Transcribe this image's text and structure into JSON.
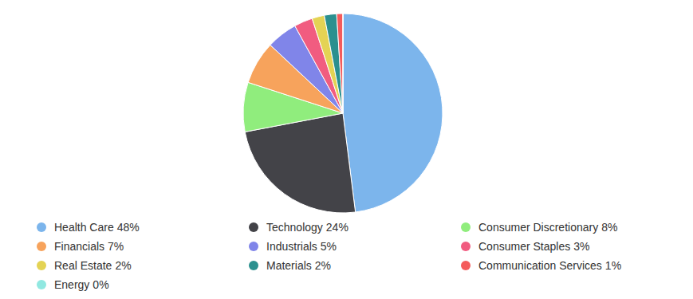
{
  "chart_data": {
    "type": "pie",
    "categories": [
      "Health Care",
      "Technology",
      "Consumer Discretionary",
      "Financials",
      "Industrials",
      "Consumer Staples",
      "Real Estate",
      "Materials",
      "Communication Services",
      "Energy"
    ],
    "values": [
      48,
      24,
      8,
      7,
      5,
      3,
      2,
      2,
      1,
      0
    ],
    "value_labels": [
      "48%",
      "24%",
      "8%",
      "7%",
      "5%",
      "3%",
      "2%",
      "2%",
      "1%",
      "0%"
    ],
    "colors": [
      "#7cb5ec",
      "#434348",
      "#90ed7d",
      "#f7a35c",
      "#8085e9",
      "#f15c80",
      "#e4d354",
      "#2b908f",
      "#f45b5b",
      "#91e8e1"
    ],
    "legend": "bottom"
  }
}
